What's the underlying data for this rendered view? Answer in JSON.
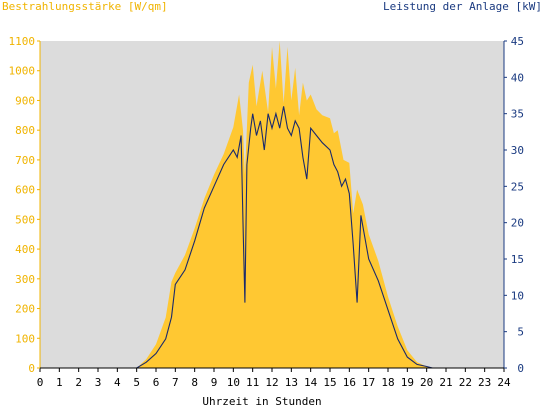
{
  "chart_data": {
    "type": "area",
    "left_title": "Bestrahlungsstärke [W/qm]",
    "right_title": "Leistung der Anlage [kW]",
    "xlabel": "Uhrzeit in Stunden",
    "xlim": [
      0,
      24
    ],
    "ylim_left": [
      0,
      1100
    ],
    "ylim_right": [
      0,
      45
    ],
    "x_ticks": [
      "0",
      "1",
      "2",
      "3",
      "4",
      "5",
      "6",
      "7",
      "8",
      "9",
      "10",
      "11",
      "12",
      "13",
      "14",
      "15",
      "16",
      "17",
      "18",
      "19",
      "20",
      "21",
      "22",
      "23",
      "24"
    ],
    "y_ticks_left": [
      "0",
      "100",
      "200",
      "300",
      "400",
      "500",
      "600",
      "700",
      "800",
      "900",
      "1000",
      "1100"
    ],
    "y_ticks_right": [
      "0",
      "5",
      "10",
      "15",
      "20",
      "25",
      "30",
      "35",
      "40",
      "45"
    ],
    "colors": {
      "irradiance": "#ffc832",
      "power": "#1a2a6c",
      "left_axis": "#f0b400",
      "right_axis": "#1a3a80",
      "plot_bg": "#dcdcdc"
    },
    "series": [
      {
        "axis": "left",
        "x": [
          0,
          5.0,
          5.5,
          6.0,
          6.5,
          6.8,
          7.0,
          7.5,
          8.0,
          8.5,
          9.0,
          9.5,
          10.0,
          10.3,
          10.5,
          10.6,
          10.8,
          11.0,
          11.2,
          11.5,
          11.8,
          12.0,
          12.2,
          12.4,
          12.6,
          12.8,
          13.0,
          13.2,
          13.4,
          13.6,
          13.8,
          14.0,
          14.3,
          14.6,
          15.0,
          15.2,
          15.4,
          15.7,
          16.0,
          16.2,
          16.4,
          16.7,
          17.0,
          17.5,
          18.0,
          18.5,
          19.0,
          19.5,
          20.0,
          20.3,
          24
        ],
        "y": [
          0,
          0,
          30,
          80,
          170,
          290,
          320,
          380,
          470,
          570,
          650,
          720,
          810,
          920,
          800,
          650,
          960,
          1020,
          880,
          1000,
          860,
          1080,
          940,
          1100,
          890,
          1080,
          900,
          1010,
          850,
          960,
          900,
          920,
          870,
          850,
          840,
          790,
          800,
          700,
          690,
          520,
          600,
          550,
          450,
          360,
          240,
          140,
          60,
          20,
          5,
          0,
          0
        ]
      },
      {
        "axis": "right",
        "x": [
          0,
          5.0,
          5.5,
          6.0,
          6.5,
          6.8,
          7.0,
          7.5,
          8.0,
          8.5,
          9.0,
          9.5,
          10.0,
          10.2,
          10.4,
          10.5,
          10.6,
          10.7,
          10.9,
          11.0,
          11.2,
          11.4,
          11.6,
          11.8,
          12.0,
          12.2,
          12.4,
          12.6,
          12.8,
          13.0,
          13.2,
          13.4,
          13.6,
          13.8,
          14.0,
          14.3,
          14.6,
          15.0,
          15.2,
          15.4,
          15.6,
          15.8,
          16.0,
          16.2,
          16.4,
          16.6,
          16.8,
          17.0,
          17.5,
          18.0,
          18.5,
          19.0,
          19.5,
          20.0,
          20.3,
          24
        ],
        "y": [
          0,
          0,
          0.8,
          2,
          4,
          7,
          11.5,
          13.5,
          17.5,
          22,
          25,
          28,
          30,
          29,
          32,
          20,
          9,
          28,
          33,
          35,
          32,
          34,
          30,
          35,
          33,
          35,
          33,
          36,
          33,
          32,
          34,
          33,
          29,
          26,
          33,
          32,
          31,
          30,
          28,
          27,
          25,
          26,
          24,
          17,
          9,
          21,
          18,
          15,
          12,
          8,
          4,
          1.5,
          0.5,
          0.2,
          0,
          0
        ]
      }
    ],
    "grid": false,
    "legend": "none"
  }
}
